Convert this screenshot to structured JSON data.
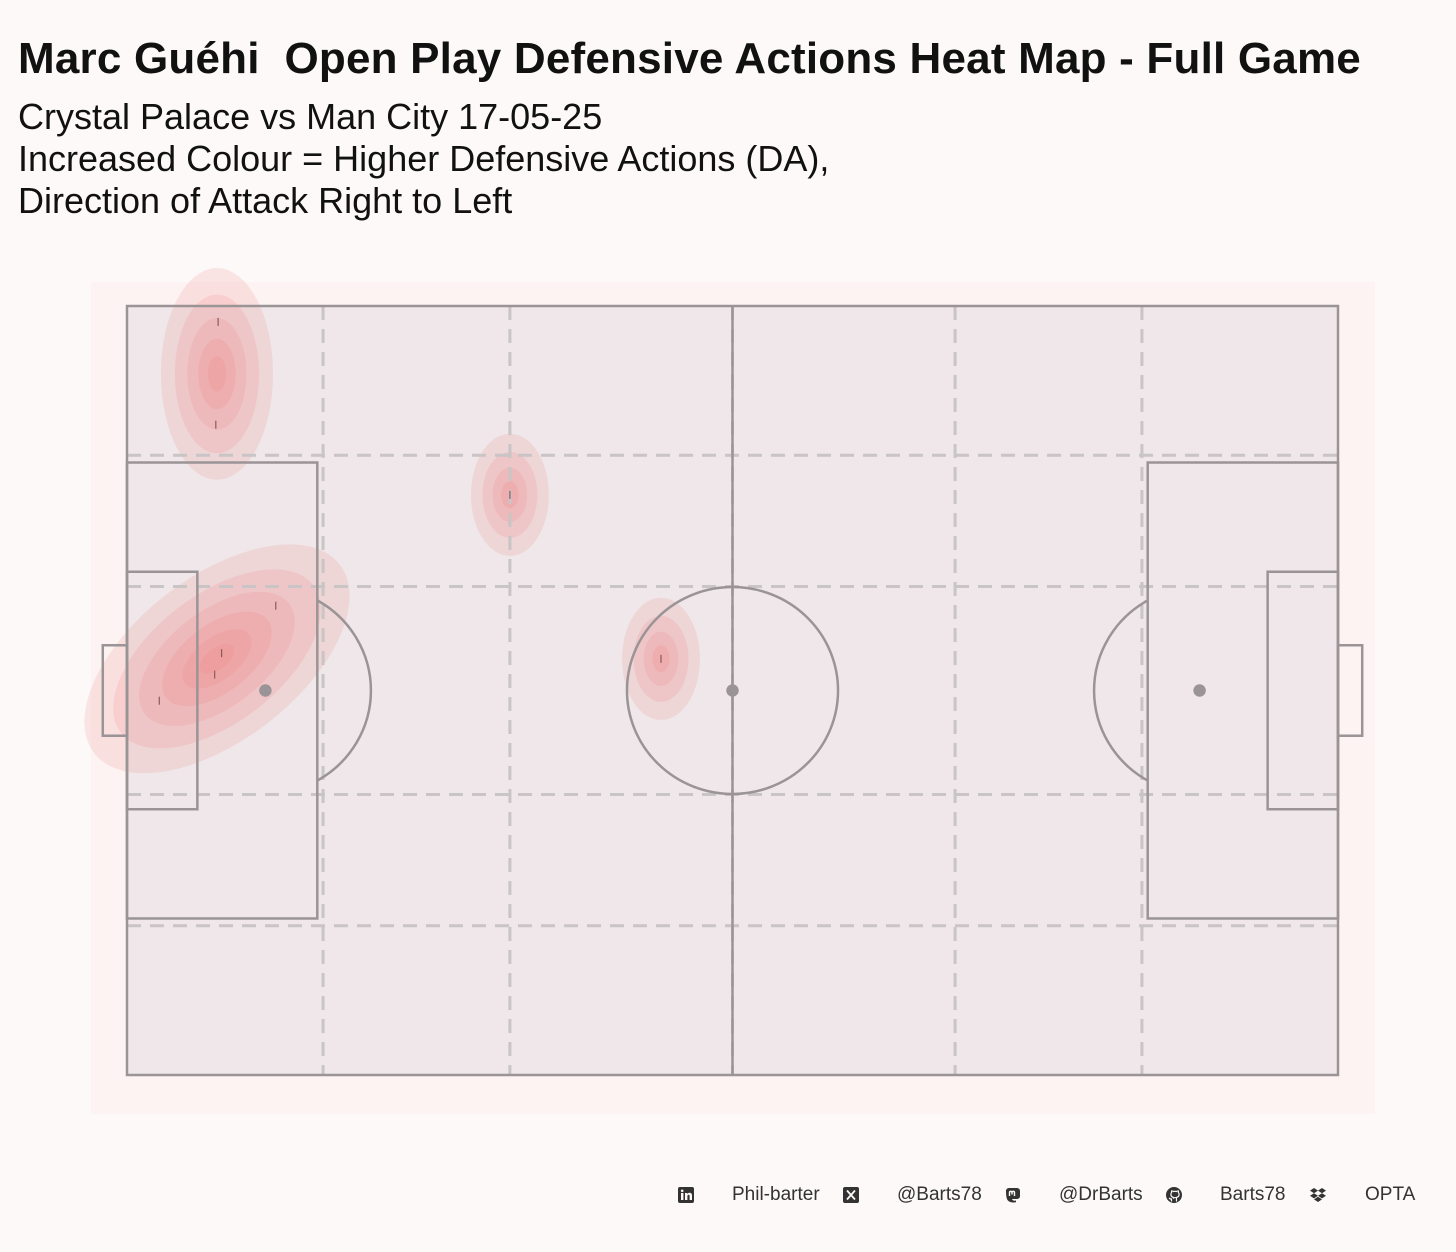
{
  "title": "Marc Guéhi  Open Play Defensive Actions Heat Map - Full Game",
  "subtitle_lines": [
    "Crystal Palace vs Man City 17-05-25",
    "Increased Colour = Higher Defensive Actions (DA),",
    "Direction of Attack Right to Left"
  ],
  "footer": {
    "linkedin": "Phil-barter",
    "x": "@Barts78",
    "mastodon": "@DrBarts",
    "github": "Barts78",
    "source": "OPTA"
  },
  "colors": {
    "background": "#fcf9f8",
    "pitch": "#efe7e9",
    "lines": "#9b9496",
    "grid": "#c9c4c5",
    "heat": "#ee7b7b"
  },
  "icons": [
    "linkedin-icon",
    "x-icon",
    "mastodon-icon",
    "github-icon",
    "dropbox-icon"
  ],
  "chart_data": {
    "type": "heatmap",
    "pitch": {
      "length": 105,
      "width": 68,
      "grid": "juego de posicion zones",
      "attack_direction": "right to left"
    },
    "events": [
      {
        "x": 7.9,
        "y": 66.6
      },
      {
        "x": 7.7,
        "y": 57.5
      },
      {
        "x": 33.2,
        "y": 51.3
      },
      {
        "x": 8.2,
        "y": 37.3
      },
      {
        "x": 12.9,
        "y": 41.5
      },
      {
        "x": 7.6,
        "y": 35.4
      },
      {
        "x": 2.8,
        "y": 33.1
      },
      {
        "x": 46.3,
        "y": 36.8
      }
    ],
    "hotspots": [
      {
        "x": 7.8,
        "y": 62.0,
        "sx": 2.7,
        "sy": 5.2,
        "rho": 0.0,
        "weight": 0.85
      },
      {
        "x": 33.2,
        "y": 51.3,
        "sx": 2.5,
        "sy": 4.0,
        "rho": 0.0,
        "weight": 0.7
      },
      {
        "x": 7.8,
        "y": 36.8,
        "sx": 5.0,
        "sy": 4.4,
        "rho": 0.55,
        "weight": 1.0
      },
      {
        "x": 46.3,
        "y": 36.8,
        "sx": 2.5,
        "sy": 4.0,
        "rho": 0.0,
        "weight": 0.6
      }
    ]
  }
}
